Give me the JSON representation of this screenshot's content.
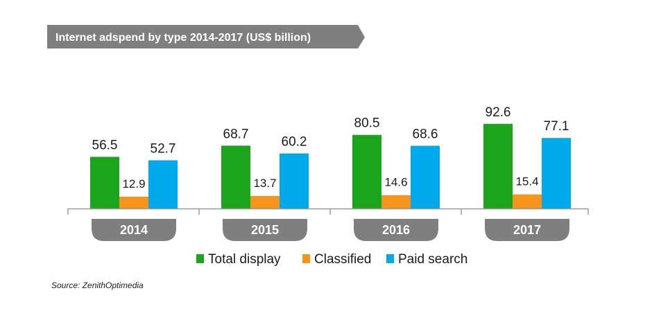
{
  "chart_data": {
    "type": "bar",
    "title": "Internet adspend by type 2014-2017 (US$ billion)",
    "categories": [
      "2014",
      "2015",
      "2016",
      "2017"
    ],
    "series": [
      {
        "name": "Total display",
        "values": [
          56.5,
          68.7,
          80.5,
          92.6
        ],
        "color": "#1aa51a",
        "labels": [
          "56.5",
          "68.7",
          "80.5",
          "92.6"
        ]
      },
      {
        "name": "Classified",
        "values": [
          12.9,
          13.7,
          14.6,
          15.4
        ],
        "color": "#f7941d",
        "labels": [
          "12.9",
          "13.7",
          "14.6",
          "15.4"
        ]
      },
      {
        "name": "Paid search",
        "values": [
          52.7,
          60.2,
          68.6,
          77.1
        ],
        "color": "#00a9ec",
        "labels": [
          "52.7",
          "60.2",
          "68.6",
          "77.1"
        ]
      }
    ],
    "ylim": [
      0,
      100
    ],
    "grid": false,
    "legend_position": "bottom",
    "source": "Source: ZenithOptimedia"
  },
  "colors": {
    "title_banner": "#7f7f7f",
    "year_tab": "#7f7f7f",
    "axis": "#9a9a9a",
    "classified_label": "#f7941d"
  }
}
